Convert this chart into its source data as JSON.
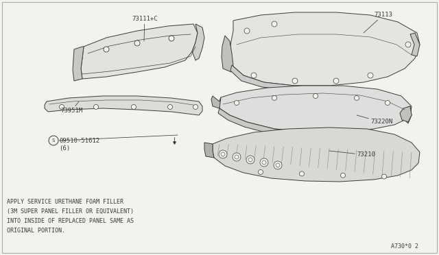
{
  "bg_color": "#f2f2ee",
  "line_color": "#3a3a3a",
  "text_color": "#3a3a3a",
  "border_color": "#b0b0b0",
  "note_lines": [
    "APPLY SERVICE URETHANE FOAM FILLER",
    "(3M SUPER PANEL FILLER OR EQUIVALENT)",
    "INTO INSIDE OF REPLACED PANEL SAME AS",
    "ORIGINAL PORTION."
  ],
  "diagram_code": "A730*0 2",
  "label_fontsize": 6.5,
  "note_fontsize": 6.0
}
